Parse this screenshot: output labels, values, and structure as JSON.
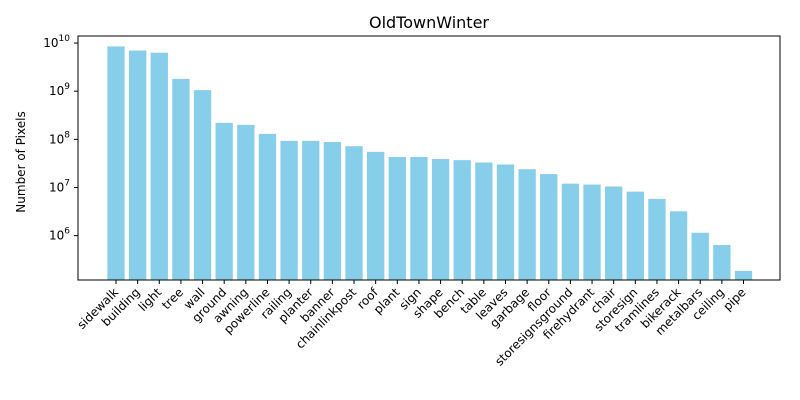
{
  "chart_data": {
    "type": "bar",
    "title": "OldTownWinter",
    "xlabel": "",
    "ylabel": "Number of Pixels",
    "yscale": "log",
    "ylim": [
      120000,
      14000000000
    ],
    "yticks": [
      {
        "value": 1000000,
        "base": "10",
        "exp": "6"
      },
      {
        "value": 10000000,
        "base": "10",
        "exp": "7"
      },
      {
        "value": 100000000,
        "base": "10",
        "exp": "8"
      },
      {
        "value": 1000000000,
        "base": "10",
        "exp": "9"
      },
      {
        "value": 10000000000,
        "base": "10",
        "exp": "10"
      }
    ],
    "bar_color": "#87ceeb",
    "categories": [
      "sidewalk",
      "building",
      "light",
      "tree",
      "wall",
      "ground",
      "awning",
      "powerline",
      "railing",
      "planter",
      "banner",
      "chainlinkpost",
      "roof",
      "plant",
      "sign",
      "shape",
      "bench",
      "table",
      "leaves",
      "garbage",
      "floor",
      "storesignsground",
      "firehydrant",
      "chair",
      "storesign",
      "tramlines",
      "bikerack",
      "metalbars",
      "ceiling",
      "pipe"
    ],
    "values": [
      8500000000,
      7000000000,
      6300000000,
      1800000000,
      1050000000,
      220000000,
      200000000,
      130000000,
      93000000,
      93000000,
      88000000,
      72000000,
      55000000,
      43000000,
      43000000,
      39000000,
      37000000,
      33000000,
      30000000,
      24000000,
      19000000,
      12000000,
      11500000,
      10500000,
      8200000,
      5800000,
      3200000,
      1150000,
      640000,
      185000
    ],
    "grid": false,
    "legend": "none"
  }
}
